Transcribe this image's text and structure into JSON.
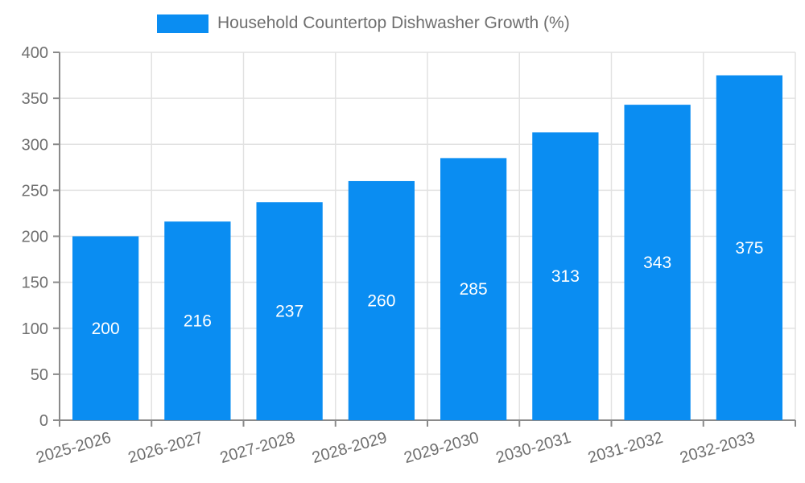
{
  "legend": {
    "label": "Household Countertop Dishwasher Growth (%)"
  },
  "chart_data": {
    "type": "bar",
    "title": "Household Countertop Dishwasher Growth (%)",
    "categories": [
      "2025-2026",
      "2026-2027",
      "2027-2028",
      "2028-2029",
      "2029-2030",
      "2030-2031",
      "2031-2032",
      "2032-2033"
    ],
    "values": [
      200,
      216,
      237,
      260,
      285,
      313,
      343,
      375
    ],
    "xlabel": "",
    "ylabel": "",
    "ylim": [
      0,
      400
    ],
    "ytick_step": 50,
    "grid": true,
    "legend_position": "top",
    "bar_color": "#0a8df2",
    "value_label_color": "#ffffff",
    "grid_color": "#e2e2e2",
    "axis_color": "#8a8a8a",
    "text_color": "#6f6f6f",
    "x_label_rotation_deg": -16
  }
}
